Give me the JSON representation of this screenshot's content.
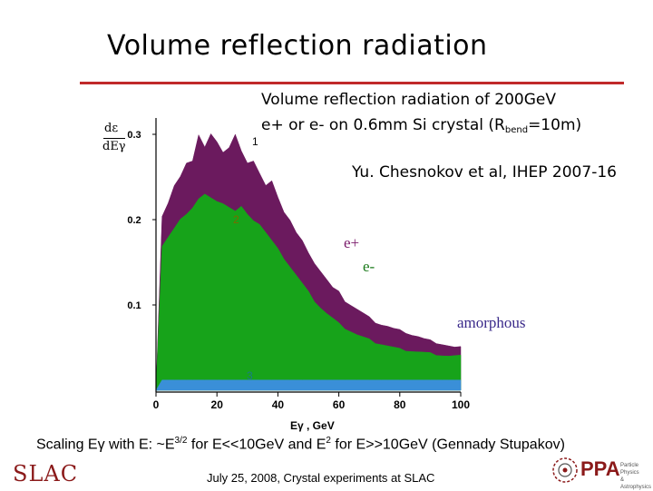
{
  "slide": {
    "title": "Volume reflection radiation",
    "note_line1": "Volume reflection radiation of 200GeV",
    "note_line2_pre": "e+ or e- on 0.6mm Si crystal (R",
    "note_line2_sub": "bend",
    "note_line2_post": "=10m)",
    "citation": "Yu. Chesnokov et al, IHEP 2007-16",
    "scaling_text": "Scaling Eγ with E: ~E",
    "scaling_exp": "3/2",
    "scaling_mid": " for E<<10GeV and E",
    "scaling_exp2": "2",
    "scaling_end": " for E>>10GeV  (Gennady Stupakov)",
    "footer": "July 25, 2008, Crystal experiments at SLAC",
    "logo_left": "SLAC",
    "logo_right": "PPA",
    "logo_right_sub1": "Particle Physics",
    "logo_right_sub2": "& Astrophysics"
  },
  "chart_data": {
    "type": "area",
    "ylabel_top": "dε",
    "ylabel_bottom": "dEγ",
    "xlabel": "Eγ , GeV",
    "x_ticks": [
      "0",
      "20",
      "40",
      "60",
      "80",
      "100"
    ],
    "y_ticks": [
      "0.1",
      "0.2",
      "0.3"
    ],
    "xlim": [
      0,
      100
    ],
    "ylim": [
      0,
      0.33
    ],
    "curve_labels": [
      "1",
      "2",
      "3"
    ],
    "annotations": [
      "e+",
      "e-",
      "amorphous"
    ],
    "colors": {
      "e_plus": "#6b1a5e",
      "e_minus": "#17a31a",
      "amorphous": "#3a8fd8",
      "annot_blue": "#3a2a8a"
    },
    "x": [
      0,
      2,
      4,
      6,
      8,
      10,
      12,
      14,
      16,
      18,
      20,
      22,
      24,
      26,
      28,
      30,
      32,
      34,
      36,
      38,
      40,
      42,
      44,
      46,
      48,
      50,
      52,
      54,
      56,
      58,
      60,
      62,
      64,
      66,
      68,
      70,
      72,
      74,
      76,
      78,
      80,
      82,
      84,
      86,
      88,
      90,
      92,
      94,
      96,
      98,
      100
    ],
    "series": [
      {
        "name": "e+",
        "values": [
          0,
          0.205,
          0.22,
          0.24,
          0.25,
          0.265,
          0.27,
          0.3,
          0.285,
          0.3,
          0.29,
          0.28,
          0.285,
          0.3,
          0.28,
          0.265,
          0.27,
          0.255,
          0.24,
          0.245,
          0.225,
          0.21,
          0.2,
          0.185,
          0.175,
          0.16,
          0.15,
          0.14,
          0.13,
          0.12,
          0.115,
          0.105,
          0.1,
          0.095,
          0.09,
          0.085,
          0.08,
          0.077,
          0.075,
          0.072,
          0.07,
          0.068,
          0.065,
          0.063,
          0.06,
          0.058,
          0.056,
          0.054,
          0.052,
          0.05,
          0.05
        ]
      },
      {
        "name": "e-",
        "values": [
          0,
          0.17,
          0.18,
          0.19,
          0.2,
          0.205,
          0.215,
          0.225,
          0.23,
          0.225,
          0.22,
          0.22,
          0.215,
          0.21,
          0.215,
          0.205,
          0.2,
          0.195,
          0.185,
          0.175,
          0.165,
          0.155,
          0.145,
          0.135,
          0.125,
          0.115,
          0.105,
          0.097,
          0.09,
          0.084,
          0.078,
          0.073,
          0.069,
          0.065,
          0.062,
          0.059,
          0.056,
          0.054,
          0.052,
          0.05,
          0.048,
          0.047,
          0.046,
          0.045,
          0.044,
          0.043,
          0.042,
          0.041,
          0.04,
          0.04,
          0.04
        ]
      },
      {
        "name": "amorphous",
        "values": [
          0,
          0.012,
          0.012,
          0.012,
          0.012,
          0.012,
          0.012,
          0.012,
          0.012,
          0.012,
          0.012,
          0.012,
          0.012,
          0.012,
          0.012,
          0.012,
          0.012,
          0.012,
          0.012,
          0.012,
          0.012,
          0.012,
          0.012,
          0.012,
          0.012,
          0.012,
          0.012,
          0.012,
          0.012,
          0.012,
          0.012,
          0.012,
          0.012,
          0.012,
          0.012,
          0.012,
          0.012,
          0.012,
          0.012,
          0.012,
          0.012,
          0.012,
          0.012,
          0.012,
          0.012,
          0.012,
          0.012,
          0.012,
          0.012,
          0.012,
          0.012
        ]
      }
    ]
  }
}
